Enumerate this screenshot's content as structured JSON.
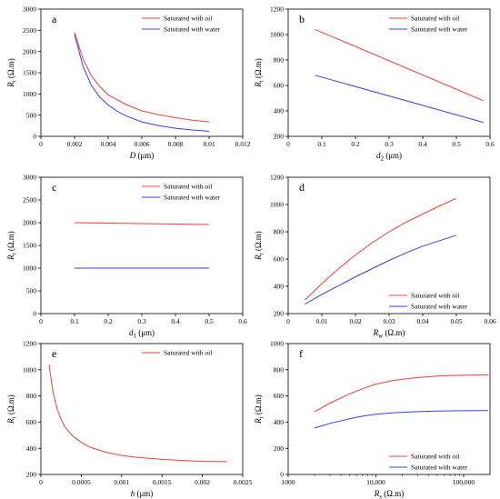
{
  "chart_data": [
    {
      "type": "line",
      "panel_label": "a",
      "xlabel": {
        "main": "D",
        "unit": " (μm)"
      },
      "ylabel": {
        "main": "R",
        "sub": "t",
        "unit": " (Ω.m)"
      },
      "xlim": [
        0,
        0.012
      ],
      "ylim": [
        0,
        3000
      ],
      "xticks": [
        0,
        0.002,
        0.004,
        0.006,
        0.008,
        0.01,
        0.012
      ],
      "xtick_labels": [
        "0",
        "0.002",
        "0.004",
        "0.006",
        "0.008",
        "0.01",
        "0.012"
      ],
      "yticks": [
        0,
        500,
        1000,
        1500,
        2000,
        2500,
        3000
      ],
      "ytick_labels": [
        "0",
        "500",
        "1000",
        "1500",
        "2000",
        "2500",
        "3000"
      ],
      "legend_position": "top-right",
      "series": [
        {
          "name": "Saturated with oil",
          "color": "#ff3b3b",
          "x": [
            0.002,
            0.0025,
            0.003,
            0.0035,
            0.004,
            0.005,
            0.006,
            0.007,
            0.008,
            0.009,
            0.01
          ],
          "y": [
            2450,
            1820,
            1430,
            1170,
            980,
            760,
            600,
            510,
            440,
            380,
            340
          ]
        },
        {
          "name": "Saturated with water",
          "color": "#3b3bff",
          "x": [
            0.002,
            0.0025,
            0.003,
            0.0035,
            0.004,
            0.0045,
            0.005,
            0.006,
            0.007,
            0.008,
            0.009,
            0.01
          ],
          "y": [
            2400,
            1650,
            1200,
            920,
            740,
            600,
            490,
            340,
            250,
            190,
            150,
            120
          ]
        }
      ]
    },
    {
      "type": "line",
      "panel_label": "b",
      "xlabel": {
        "main": "d",
        "sub": "2",
        "unit": " (μm)"
      },
      "ylabel": {
        "main": "R",
        "sub": "t",
        "unit": " (Ω.m)"
      },
      "xlim": [
        0,
        0.6
      ],
      "ylim": [
        200,
        1200
      ],
      "xticks": [
        0,
        0.1,
        0.2,
        0.3,
        0.4,
        0.5,
        0.6
      ],
      "xtick_labels": [
        "0",
        "0.1",
        "0.2",
        "0.3",
        "0.4",
        "0.5",
        "0.6"
      ],
      "yticks": [
        200,
        400,
        600,
        800,
        1000,
        1200
      ],
      "ytick_labels": [
        "200",
        "400",
        "600",
        "800",
        "1000",
        "1200"
      ],
      "legend_position": "top-right",
      "series": [
        {
          "name": "Saturated with oil",
          "color": "#ff3b3b",
          "x": [
            0.08,
            0.58
          ],
          "y": [
            1040,
            480
          ]
        },
        {
          "name": "Saturated with water",
          "color": "#3b3bff",
          "x": [
            0.08,
            0.58
          ],
          "y": [
            680,
            310
          ]
        }
      ]
    },
    {
      "type": "line",
      "panel_label": "c",
      "xlabel": {
        "main": "d",
        "sub": "1",
        "unit": " (μm)"
      },
      "ylabel": {
        "main": "R",
        "sub": "t",
        "unit": " (Ω.m)"
      },
      "xlim": [
        0,
        0.6
      ],
      "ylim": [
        0,
        3000
      ],
      "xticks": [
        0,
        0.1,
        0.2,
        0.3,
        0.4,
        0.5,
        0.6
      ],
      "xtick_labels": [
        "0",
        "0.1",
        "0.2",
        "0.3",
        "0.4",
        "0.5",
        "0.6"
      ],
      "yticks": [
        0,
        500,
        1000,
        1500,
        2000,
        2500,
        3000
      ],
      "ytick_labels": [
        "0",
        "500",
        "1000",
        "1500",
        "2000",
        "2500",
        "3000"
      ],
      "legend_position": "top-right",
      "series": [
        {
          "name": "Saturated with oil",
          "color": "#ff3b3b",
          "x": [
            0.1,
            0.5
          ],
          "y": [
            2000,
            1960
          ]
        },
        {
          "name": "Saturated with water",
          "color": "#3b3bff",
          "x": [
            0.1,
            0.5
          ],
          "y": [
            1000,
            1000
          ]
        }
      ]
    },
    {
      "type": "line",
      "panel_label": "d",
      "xlabel": {
        "main": "R",
        "sub": "w",
        "unit": " (Ω.m)"
      },
      "ylabel": {
        "main": "R",
        "sub": "t",
        "unit": " (Ω.m)"
      },
      "xlim": [
        0,
        0.06
      ],
      "ylim": [
        200,
        1200
      ],
      "xticks": [
        0,
        0.01,
        0.02,
        0.03,
        0.04,
        0.05,
        0.06
      ],
      "xtick_labels": [
        "0",
        "0.01",
        "0.02",
        "0.03",
        "0.04",
        "0.05",
        "0.06"
      ],
      "yticks": [
        200,
        400,
        600,
        800,
        1000,
        1200
      ],
      "ytick_labels": [
        "200",
        "400",
        "600",
        "800",
        "1000",
        "1200"
      ],
      "legend_position": "bottom-right",
      "series": [
        {
          "name": "Saturated with oil",
          "color": "#ff3b3b",
          "x": [
            0.005,
            0.01,
            0.015,
            0.02,
            0.025,
            0.03,
            0.035,
            0.04,
            0.045,
            0.05
          ],
          "y": [
            300,
            420,
            530,
            630,
            720,
            800,
            870,
            930,
            990,
            1045
          ]
        },
        {
          "name": "Saturated with water",
          "color": "#3b3bff",
          "x": [
            0.005,
            0.01,
            0.015,
            0.02,
            0.025,
            0.03,
            0.035,
            0.04,
            0.045,
            0.05
          ],
          "y": [
            270,
            340,
            405,
            470,
            530,
            590,
            645,
            695,
            735,
            775
          ]
        }
      ]
    },
    {
      "type": "line",
      "panel_label": "e",
      "xlabel": {
        "main": "h",
        "unit": " (μm)"
      },
      "ylabel": {
        "main": "R",
        "sub": "t",
        "unit": " (Ω.m)"
      },
      "xlim": [
        0,
        0.0025
      ],
      "ylim": [
        200,
        1200
      ],
      "xticks": [
        0,
        0.0005,
        0.001,
        0.0015,
        0.002,
        0.0025
      ],
      "xtick_labels": [
        "0",
        "0.0005",
        "0.001",
        "0.0015",
        "0.002",
        "0.0025"
      ],
      "yticks": [
        200,
        400,
        600,
        800,
        1000,
        1200
      ],
      "ytick_labels": [
        "200",
        "400",
        "600",
        "800",
        "1000",
        "1200"
      ],
      "legend_position": "top-right",
      "series": [
        {
          "name": "Saturated with oil",
          "color": "#ff3b3b",
          "x": [
            0.0001,
            0.00015,
            0.0002,
            0.00025,
            0.0003,
            0.0004,
            0.0005,
            0.0006,
            0.0008,
            0.001,
            0.0012,
            0.0015,
            0.0018,
            0.002,
            0.0023
          ],
          "y": [
            1040,
            830,
            700,
            620,
            560,
            490,
            445,
            410,
            370,
            345,
            330,
            315,
            305,
            300,
            298
          ]
        }
      ]
    },
    {
      "type": "line",
      "panel_label": "f",
      "xlabel": {
        "main": "R",
        "sub": "s",
        "unit": " (Ω.m)"
      },
      "ylabel": {
        "main": "R",
        "sub": "t",
        "unit": " (Ω.m)"
      },
      "xscale": "log",
      "xlim": [
        1000,
        200000
      ],
      "ylim": [
        0,
        1000
      ],
      "xticks": [
        1000,
        10000,
        100000
      ],
      "xtick_labels": [
        "1000",
        "10,000",
        "100,000"
      ],
      "yticks": [
        0,
        200,
        400,
        600,
        800,
        1000
      ],
      "ytick_labels": [
        "0",
        "200",
        "400",
        "600",
        "800",
        "1000"
      ],
      "legend_position": "bottom-right",
      "series": [
        {
          "name": "Saturated with oil",
          "color": "#ff3b3b",
          "x": [
            2000,
            3000,
            5000,
            7000,
            10000,
            15000,
            20000,
            30000,
            50000,
            70000,
            100000,
            150000,
            190000
          ],
          "y": [
            480,
            545,
            615,
            655,
            690,
            715,
            728,
            740,
            752,
            756,
            758,
            760,
            761
          ]
        },
        {
          "name": "Saturated with water",
          "color": "#3b3bff",
          "x": [
            2000,
            3000,
            5000,
            7000,
            10000,
            15000,
            20000,
            30000,
            50000,
            70000,
            100000,
            150000,
            190000
          ],
          "y": [
            355,
            390,
            425,
            445,
            460,
            470,
            475,
            480,
            484,
            486,
            487,
            488,
            488
          ]
        }
      ]
    }
  ]
}
